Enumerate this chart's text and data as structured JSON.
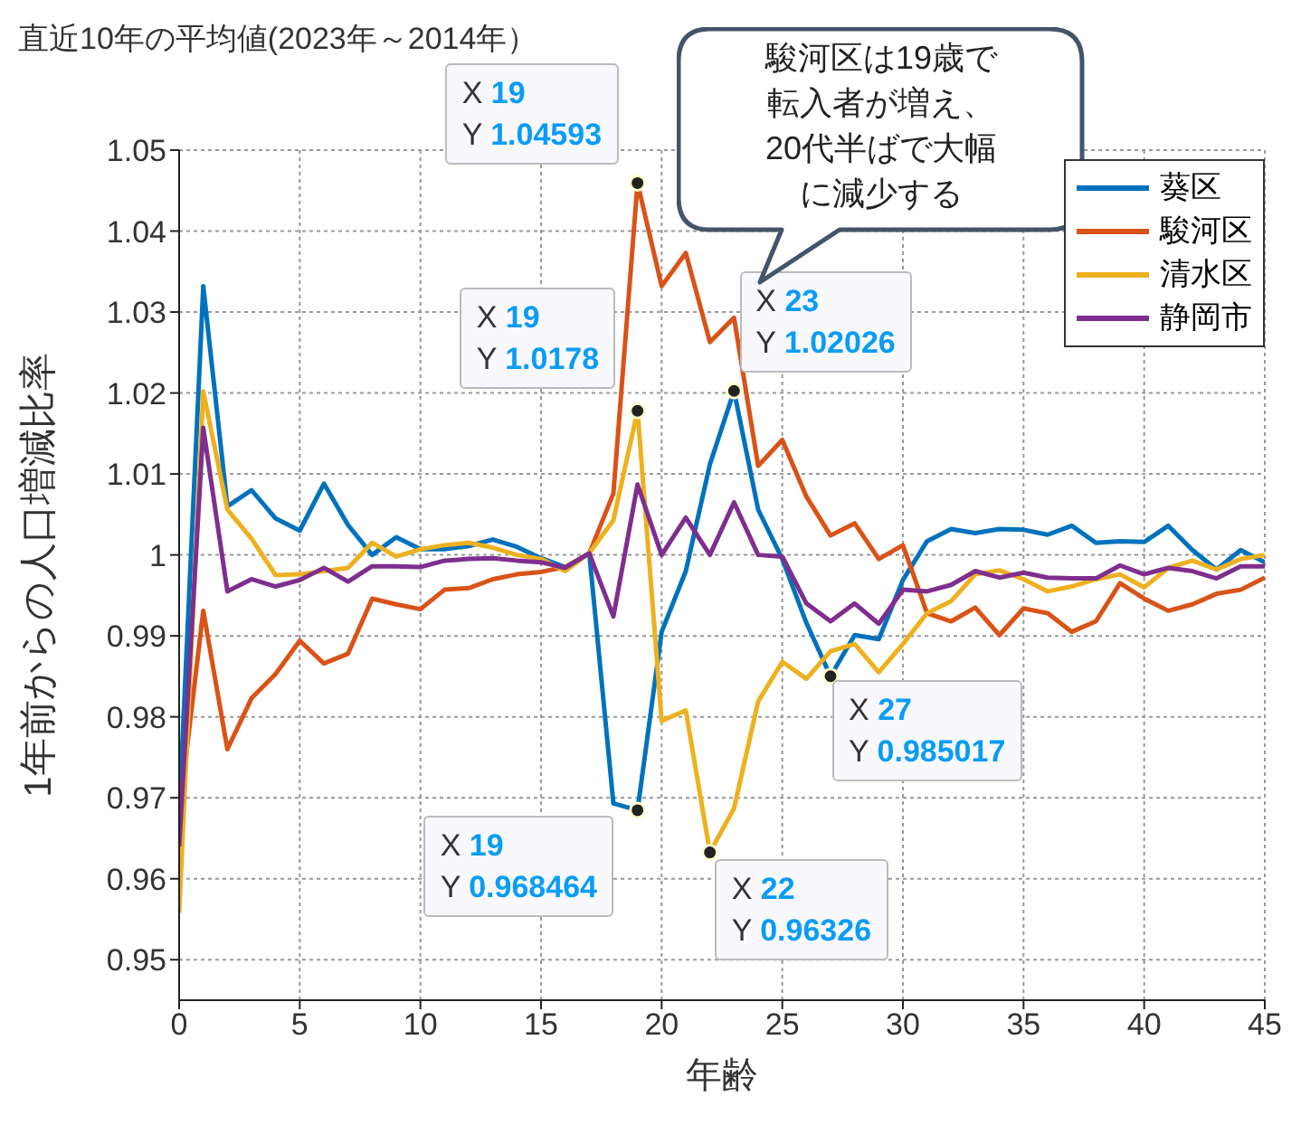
{
  "chart_data": {
    "type": "line",
    "title": "直近10年の平均値(2023年～2014年）",
    "xlabel": "年齢",
    "ylabel": "1年前からの人口増減比率",
    "x": [
      0,
      1,
      2,
      3,
      4,
      5,
      6,
      7,
      8,
      9,
      10,
      11,
      12,
      13,
      14,
      15,
      16,
      17,
      18,
      19,
      20,
      21,
      22,
      23,
      24,
      25,
      26,
      27,
      28,
      29,
      30,
      31,
      32,
      33,
      34,
      35,
      36,
      37,
      38,
      39,
      40,
      41,
      42,
      43,
      44,
      45
    ],
    "series": [
      {
        "name": "葵区",
        "color": "#0072bd",
        "values": [
          0.968,
          1.0332,
          1.006,
          1.008,
          1.0045,
          1.003,
          1.0088,
          1.0037,
          1.0,
          1.0022,
          1.0007,
          1.0007,
          1.0011,
          1.0019,
          1.001,
          0.9996,
          0.9985,
          1.0002,
          0.9693,
          0.968464,
          0.9905,
          0.998,
          1.0112,
          1.02026,
          1.0056,
          0.9995,
          0.9916,
          0.985017,
          0.9901,
          0.9896,
          0.9969,
          1.0017,
          1.0032,
          1.0027,
          1.0032,
          1.0031,
          1.0025,
          1.0036,
          1.0015,
          1.0017,
          1.0016,
          1.0036,
          1.0006,
          0.9982,
          1.0006,
          0.9991
        ]
      },
      {
        "name": "駿河区",
        "color": "#d95319",
        "values": [
          0.968,
          0.9931,
          0.976,
          0.9823,
          0.9853,
          0.9894,
          0.9866,
          0.9878,
          0.9946,
          0.9939,
          0.9933,
          0.9957,
          0.9959,
          0.997,
          0.9976,
          0.9979,
          0.9985,
          1.0002,
          1.0076,
          1.04593,
          1.0332,
          1.0373,
          1.0263,
          1.0293,
          1.011,
          1.0142,
          1.0072,
          1.0024,
          1.0039,
          0.9995,
          1.0012,
          0.9928,
          0.9918,
          0.9935,
          0.9901,
          0.9934,
          0.9928,
          0.9905,
          0.9918,
          0.9965,
          0.9946,
          0.9931,
          0.9939,
          0.9952,
          0.9957,
          0.9972
        ]
      },
      {
        "name": "清水区",
        "color": "#edb120",
        "values": [
          0.9558,
          1.0202,
          1.0056,
          1.002,
          0.9975,
          0.9976,
          0.998,
          0.9984,
          1.0015,
          0.9998,
          1.0007,
          1.0012,
          1.0015,
          1.0009,
          1.0,
          0.9995,
          0.998,
          1.0002,
          1.0043,
          1.0178,
          0.9795,
          0.9808,
          0.96326,
          0.9687,
          0.9819,
          0.9868,
          0.9847,
          0.9881,
          0.989,
          0.9855,
          0.989,
          0.9928,
          0.9943,
          0.9976,
          0.9981,
          0.997,
          0.9955,
          0.9961,
          0.997,
          0.9976,
          0.996,
          0.9984,
          0.9993,
          0.9982,
          0.9995,
          1.0
        ]
      },
      {
        "name": "静岡市",
        "color": "#7e2f8e",
        "values": [
          0.964,
          1.0157,
          0.9955,
          0.997,
          0.9961,
          0.9969,
          0.9984,
          0.9967,
          0.9986,
          0.9986,
          0.9985,
          0.9993,
          0.9995,
          0.9996,
          0.9993,
          0.9991,
          0.9984,
          1.0002,
          0.9924,
          1.0087,
          1.0,
          1.0046,
          1.0,
          1.0065,
          1.0,
          0.9998,
          0.994,
          0.9918,
          0.994,
          0.9915,
          0.9957,
          0.9955,
          0.9963,
          0.998,
          0.9972,
          0.9978,
          0.9972,
          0.9971,
          0.9971,
          0.9987,
          0.9976,
          0.9984,
          0.998,
          0.9971,
          0.9986,
          0.9986
        ]
      }
    ],
    "xlim": [
      0,
      45
    ],
    "xticks": [
      0,
      5,
      10,
      15,
      20,
      25,
      30,
      35,
      40,
      45
    ],
    "ylim": [
      0.945,
      1.05
    ],
    "yticks": [
      0.95,
      0.96,
      0.97,
      0.98,
      0.99,
      1,
      1.01,
      1.02,
      1.03,
      1.04,
      1.05
    ],
    "grid": true,
    "legend": "top right",
    "marker": "none",
    "line_style": "solid",
    "annotations": [
      {
        "text": "X 19\nY 1.04593",
        "x": 19,
        "y": 1.04593
      },
      {
        "text": "X 19\nY 1.0178",
        "x": 19,
        "y": 1.0178
      },
      {
        "text": "X 23\nY 1.02026",
        "x": 23,
        "y": 1.02026
      },
      {
        "text": "X 19\nY 0.968464",
        "x": 19,
        "y": 0.968464
      },
      {
        "text": "X 22\nY 0.96326",
        "x": 22,
        "y": 0.96326
      },
      {
        "text": "X 27\nY 0.985017",
        "x": 27,
        "y": 0.985017
      },
      "駿河区は19歳で転入者が増え、20代半ばで大幅に減少する"
    ]
  }
}
